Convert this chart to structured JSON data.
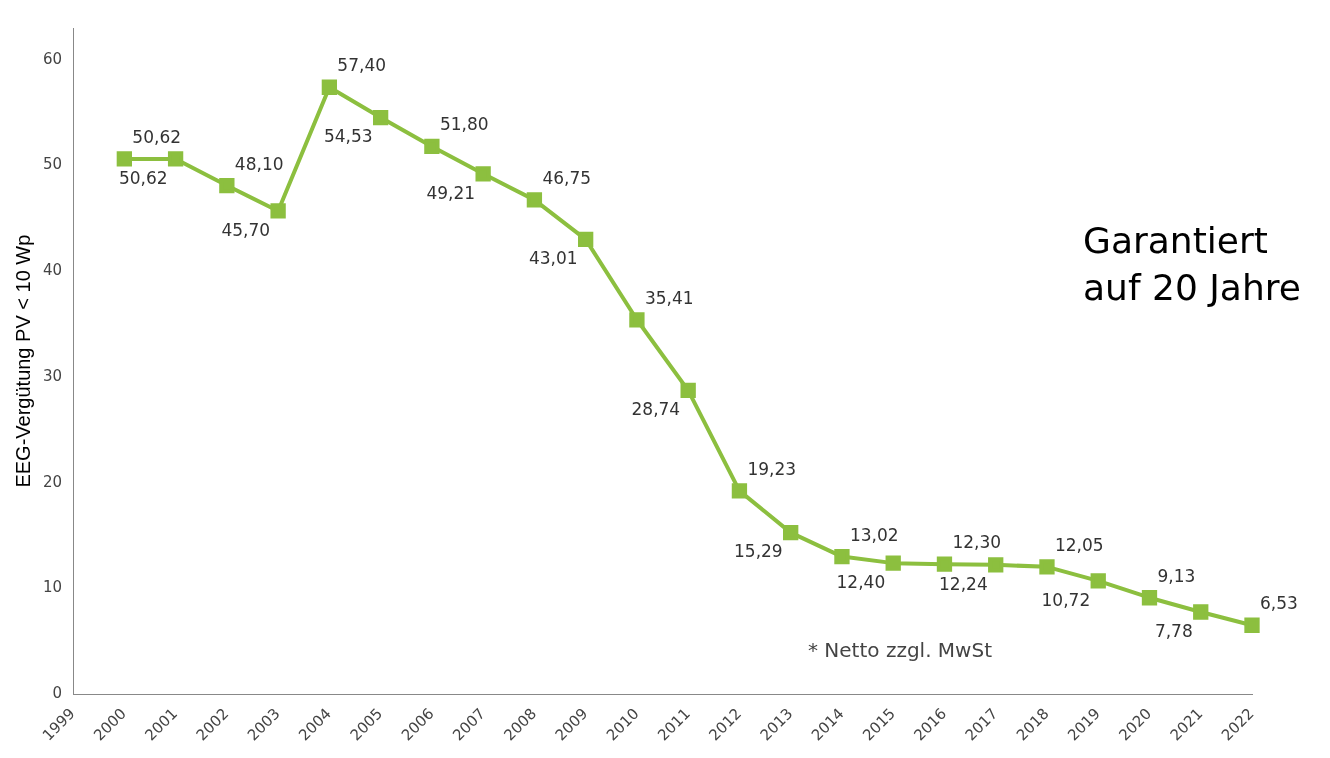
{
  "chart_data": {
    "type": "line",
    "ylabel": "EEG-Vergütung PV < 10 Wp",
    "categories": [
      "1999",
      "2000",
      "2001",
      "2002",
      "2003",
      "2004",
      "2005",
      "2006",
      "2007",
      "2008",
      "2009",
      "2010",
      "2011",
      "2012",
      "2013",
      "2014",
      "2015",
      "2016",
      "2017",
      "2018",
      "2019",
      "2020",
      "2021",
      "2022"
    ],
    "series": [
      {
        "color": "#8cbf3f",
        "values": [
          null,
          50.62,
          50.62,
          48.1,
          45.7,
          57.4,
          54.53,
          51.8,
          49.21,
          46.75,
          43.01,
          35.41,
          28.74,
          19.23,
          15.29,
          13.02,
          12.4,
          12.3,
          12.24,
          12.05,
          10.72,
          9.13,
          7.78,
          6.53
        ],
        "value_labels": [
          null,
          "50,62",
          "50,62",
          "48,10",
          "45,70",
          "57,40",
          "54,53",
          "51,80",
          "49,21",
          "46,75",
          "43,01",
          "35,41",
          "28,74",
          "19,23",
          "15,29",
          "13,02",
          "12,40",
          "12,30",
          "12,24",
          "12,05",
          "10,72",
          "9,13",
          "7,78",
          "6,53"
        ]
      }
    ],
    "ylim": [
      0,
      63
    ],
    "yticks": [
      0,
      10,
      20,
      30,
      40,
      50,
      60
    ],
    "grid": false,
    "legend": false,
    "marker": "square",
    "line_style": "solid",
    "annotations": [
      "Garantiert auf 20 Jahre",
      "* Netto zzgl. MwSt"
    ]
  }
}
